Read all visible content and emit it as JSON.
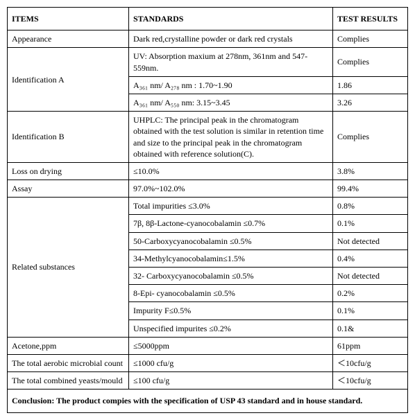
{
  "header": {
    "items": "ITEMS",
    "standards": "STANDARDS",
    "results": "TEST RESULTS"
  },
  "rows": {
    "appearance": {
      "item": "Appearance",
      "std": "Dark red,crystalline powder or dark red crystals",
      "res": "Complies"
    },
    "identA": {
      "item": "Identification A",
      "r1": {
        "std": "UV: Absorption maxium at 278nm, 361nm and 547-559nm.",
        "res": "Complies"
      },
      "r2": {
        "std": "A₃₆₁ nm/ A₂₇₈ nm : 1.70~1.90",
        "res": "1.86"
      },
      "r3": {
        "std": "A₃₆₁ nm/ A₅₅₀ nm: 3.15~3.45",
        "res": "3.26"
      }
    },
    "identB": {
      "item": "Identification B",
      "std": "UHPLC: The principal peak in the chromatogram obtained with the test solution is similar in retention time and size to the principal peak in the chromatogram obtained with reference solution(C).",
      "res": "Complies"
    },
    "lossOnDrying": {
      "item": "Loss on drying",
      "std": "≤10.0%",
      "res": "3.8%"
    },
    "assay": {
      "item": "Assay",
      "std": "97.0%~102.0%",
      "res": "99.4%"
    },
    "related": {
      "item": "Related substances",
      "r1": {
        "std": "Total impurities  ≤3.0%",
        "res": "0.8%"
      },
      "r2": {
        "std": "7β,   8β-Lactone-cyanocobalamin  ≤0.7%",
        "res": "0.1%"
      },
      "r3": {
        "std": "50-Carboxycyanocobalamin  ≤0.5%",
        "res": "Not detected"
      },
      "r4": {
        "std": "34-Methylcyanocobalamin≤1.5%",
        "res": "0.4%"
      },
      "r5": {
        "std": "32- Carboxycyanocobalamin  ≤0.5%",
        "res": "Not detected"
      },
      "r6": {
        "std": "8-Epi- cyanocobalamin  ≤0.5%",
        "res": "0.2%"
      },
      "r7": {
        "std": "Impurity F≤0.5%",
        "res": "0.1%"
      },
      "r8": {
        "std": "Unspecified impurites   ≤0.2%",
        "res": "0.1&"
      }
    },
    "acetone": {
      "item": "Acetone,ppm",
      "std": "≤5000ppm",
      "res": "61ppm"
    },
    "aerobic": {
      "item": "The total aerobic microbial count",
      "std": "≤1000 cfu/g",
      "res": "＜10cfu/g"
    },
    "yeastsMould": {
      "item": "The total combined yeasts/mould",
      "std": "≤100 cfu/g",
      "res": "＜10cfu/g"
    }
  },
  "conclusion": "Conclusion: The product compies with the specification of USP 43 standard and in house standard."
}
